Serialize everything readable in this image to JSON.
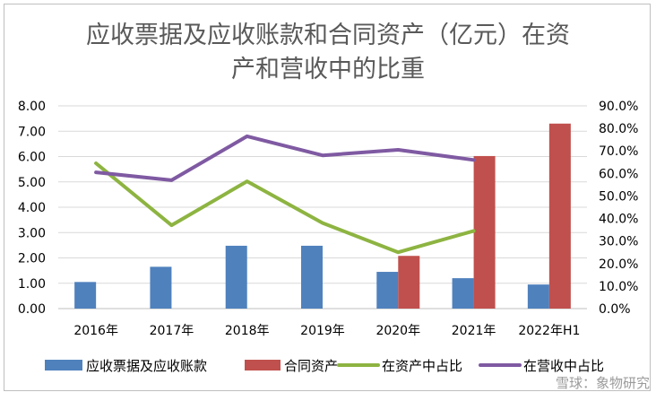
{
  "chart_data": {
    "type": "bar",
    "title_line1": "应收票据及应收账款和合同资产（亿元）在资",
    "title_line2": "产和营收中的比重",
    "categories": [
      "2016年",
      "2017年",
      "2018年",
      "2019年",
      "2020年",
      "2021年",
      "2022年H1"
    ],
    "left_axis": {
      "ylim": [
        0,
        8
      ],
      "ticks": [
        "0.00",
        "1.00",
        "2.00",
        "3.00",
        "4.00",
        "5.00",
        "6.00",
        "7.00",
        "8.00"
      ]
    },
    "right_axis": {
      "ylim": [
        0,
        90
      ],
      "ticks": [
        "0.0%",
        "10.0%",
        "20.0%",
        "30.0%",
        "40.0%",
        "50.0%",
        "60.0%",
        "70.0%",
        "80.0%",
        "90.0%"
      ]
    },
    "series": [
      {
        "name": "应收票据及应收账款",
        "kind": "bar",
        "axis": "left",
        "color": "#4f81bd",
        "values": [
          1.05,
          1.65,
          2.48,
          2.48,
          1.45,
          1.2,
          0.95
        ]
      },
      {
        "name": "合同资产",
        "kind": "bar",
        "axis": "left",
        "color": "#c0504d",
        "values": [
          null,
          null,
          null,
          null,
          2.08,
          6.02,
          7.3
        ]
      },
      {
        "name": "在资产中占比",
        "kind": "line",
        "axis": "right",
        "color": "#8db441",
        "values": [
          64.5,
          37,
          56.5,
          38,
          25,
          34.5,
          null
        ]
      },
      {
        "name": "在营收中占比",
        "kind": "line",
        "axis": "right",
        "color": "#7f5aa2",
        "values": [
          60.5,
          57,
          76.5,
          68,
          70.5,
          66,
          null
        ]
      }
    ],
    "grid": true,
    "legend_position": "bottom"
  },
  "watermark": "雪球：象物研究"
}
